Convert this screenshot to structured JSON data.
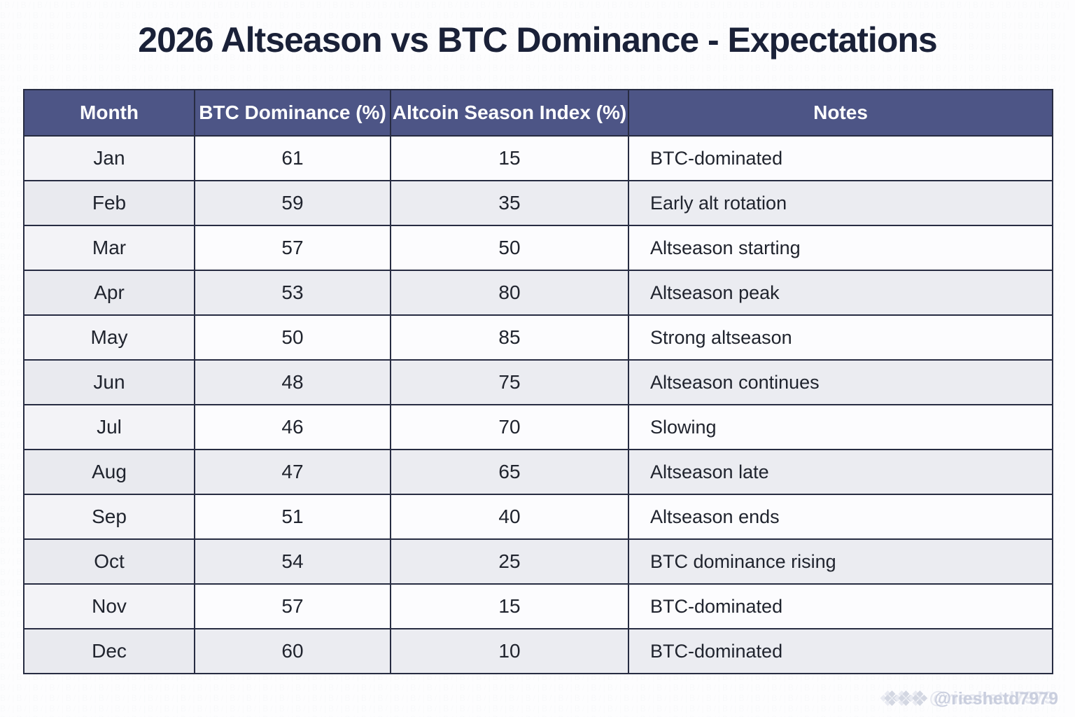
{
  "page_title": "2026 Altseason vs BTC Dominance - Expectations",
  "chart_data": {
    "type": "table",
    "title": "2026 Altseason vs BTC Dominance - Expectations",
    "columns": [
      "Month",
      "BTC Dominance (%)",
      "Altcoin Season Index (%)",
      "Notes"
    ],
    "categories": [
      "Jan",
      "Feb",
      "Mar",
      "Apr",
      "May",
      "Jun",
      "Jul",
      "Aug",
      "Sep",
      "Oct",
      "Nov",
      "Dec"
    ],
    "series": [
      {
        "name": "BTC Dominance (%)",
        "values": [
          61,
          59,
          57,
          53,
          50,
          48,
          46,
          47,
          51,
          54,
          57,
          60
        ]
      },
      {
        "name": "Altcoin Season Index (%)",
        "values": [
          15,
          35,
          50,
          80,
          85,
          75,
          70,
          65,
          40,
          25,
          15,
          10
        ]
      }
    ],
    "notes": [
      "BTC-dominated",
      "Early alt rotation",
      "Altseason starting",
      "Altseason peak",
      "Strong altseason",
      "Altseason continues",
      "Slowing",
      "Altseason late",
      "Altseason ends",
      "BTC dominance rising",
      "BTC-dominated",
      "BTC-dominated"
    ],
    "layout_hints": {
      "striped_rows": true,
      "header_position": "top",
      "notes_alignment": "left",
      "values_alignment": "center"
    }
  },
  "colors": {
    "header_bg": "#4d5586",
    "header_text": "#ffffff",
    "border": "#272c42",
    "row_bg": "#fcfcfe",
    "row_alt_bg": "#ebecf1",
    "title_text": "#1a2138",
    "cell_text": "#20242e",
    "watermark_text": "#c9cede"
  },
  "watermark": {
    "icon": "diamond-logo-icon",
    "diamond_count": 3,
    "text": "@rieshetd7979"
  },
  "background_pattern": {
    "tile": "|B/"
  }
}
